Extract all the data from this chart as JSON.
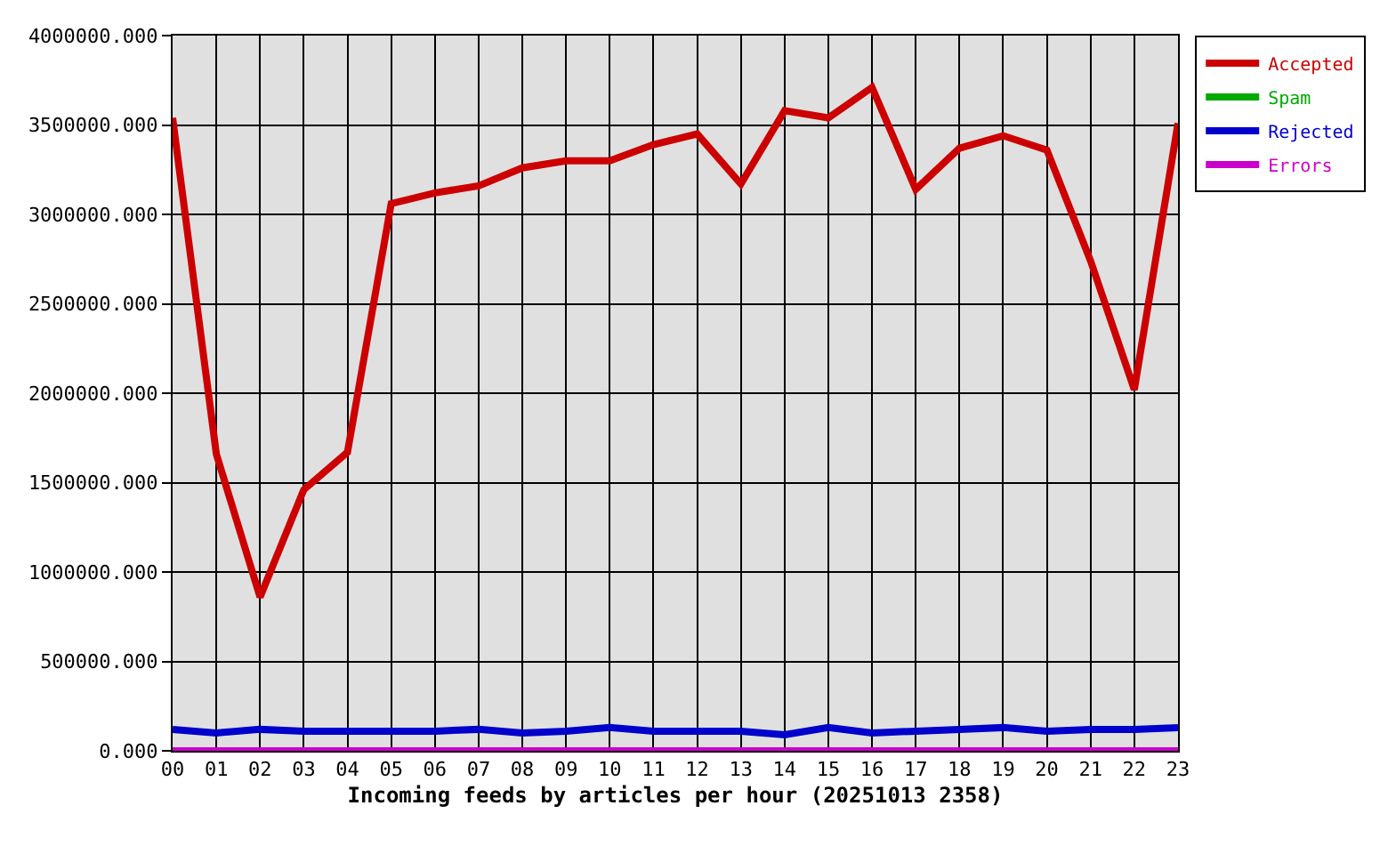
{
  "chart_data": {
    "type": "line",
    "xlabel": "Incoming feeds by articles per hour (20251013 2358)",
    "categories": [
      "00",
      "01",
      "02",
      "03",
      "04",
      "05",
      "06",
      "07",
      "08",
      "09",
      "10",
      "11",
      "12",
      "13",
      "14",
      "15",
      "16",
      "17",
      "18",
      "19",
      "20",
      "21",
      "22",
      "23"
    ],
    "series": [
      {
        "name": "Accepted",
        "color": "#cc0000",
        "values": [
          3540000,
          1660000,
          860000,
          1460000,
          1670000,
          3060000,
          3120000,
          3160000,
          3260000,
          3300000,
          3300000,
          3390000,
          3450000,
          3170000,
          3580000,
          3540000,
          3710000,
          3140000,
          3370000,
          3440000,
          3360000,
          2740000,
          2020000,
          3510000
        ]
      },
      {
        "name": "Spam",
        "color": "#00aa00",
        "values": [
          null,
          null,
          null,
          null,
          null,
          null,
          null,
          null,
          null,
          null,
          null,
          null,
          null,
          null,
          null,
          null,
          null,
          null,
          null,
          null,
          null,
          null,
          null,
          null
        ]
      },
      {
        "name": "Rejected",
        "color": "#0000cc",
        "values": [
          120000,
          100000,
          120000,
          110000,
          110000,
          110000,
          110000,
          120000,
          100000,
          110000,
          130000,
          110000,
          110000,
          110000,
          90000,
          130000,
          100000,
          110000,
          120000,
          130000,
          110000,
          120000,
          120000,
          130000
        ]
      },
      {
        "name": "Errors",
        "color": "#cc00cc",
        "values": [
          0,
          0,
          0,
          0,
          0,
          0,
          0,
          0,
          0,
          0,
          0,
          0,
          0,
          0,
          0,
          0,
          0,
          0,
          0,
          0,
          0,
          0,
          0,
          0
        ]
      }
    ],
    "ylim": [
      0,
      4000000
    ],
    "yticks": [
      {
        "value": 0,
        "label": "0.000"
      },
      {
        "value": 500000,
        "label": "500000.000"
      },
      {
        "value": 1000000,
        "label": "1000000.000"
      },
      {
        "value": 1500000,
        "label": "1500000.000"
      },
      {
        "value": 2000000,
        "label": "2000000.000"
      },
      {
        "value": 2500000,
        "label": "2500000.000"
      },
      {
        "value": 3000000,
        "label": "3000000.000"
      },
      {
        "value": 3500000,
        "label": "3500000.000"
      },
      {
        "value": 4000000,
        "label": "4000000.000"
      }
    ],
    "grid": true,
    "legend": "top right"
  }
}
